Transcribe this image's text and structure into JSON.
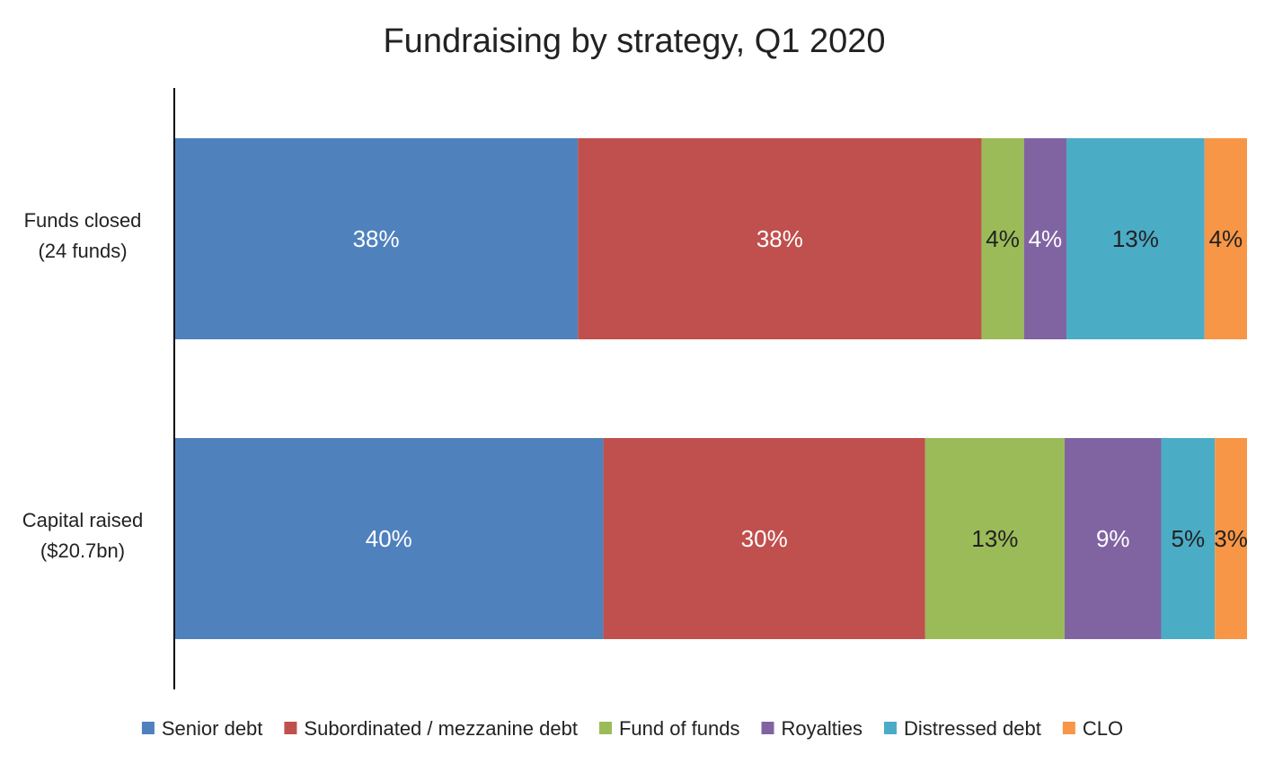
{
  "chart_data": {
    "type": "bar",
    "orientation": "horizontal",
    "stacked": "percent",
    "title": "Fundraising by strategy, Q1 2020",
    "categories": [
      "Funds closed\n(24 funds)",
      "Capital raised\n($20.7bn)"
    ],
    "series": [
      {
        "name": "Senior debt",
        "values": [
          38,
          40
        ],
        "labels": [
          "38%",
          "40%"
        ],
        "color": "#4f81bd",
        "label_color": "#ffffff"
      },
      {
        "name": "Subordinated / mezzanine debt",
        "values": [
          38,
          30
        ],
        "labels": [
          "38%",
          "30%"
        ],
        "color": "#c0504d",
        "label_color": "#ffffff"
      },
      {
        "name": "Fund of funds",
        "values": [
          4,
          13
        ],
        "labels": [
          "4%",
          "13%"
        ],
        "color": "#9bbb59",
        "label_color": "#222222"
      },
      {
        "name": "Royalties",
        "values": [
          4,
          9
        ],
        "labels": [
          "4%",
          "9%"
        ],
        "color": "#8064a2",
        "label_color": "#ffffff"
      },
      {
        "name": "Distressed debt",
        "values": [
          13,
          5
        ],
        "labels": [
          "13%",
          "5%"
        ],
        "color": "#4bacc6",
        "label_color": "#222222"
      },
      {
        "name": "CLO",
        "values": [
          4,
          3
        ],
        "labels": [
          "4%",
          "3%"
        ],
        "color": "#f79646",
        "label_color": "#222222"
      }
    ],
    "legend_position": "bottom",
    "grid": false
  }
}
